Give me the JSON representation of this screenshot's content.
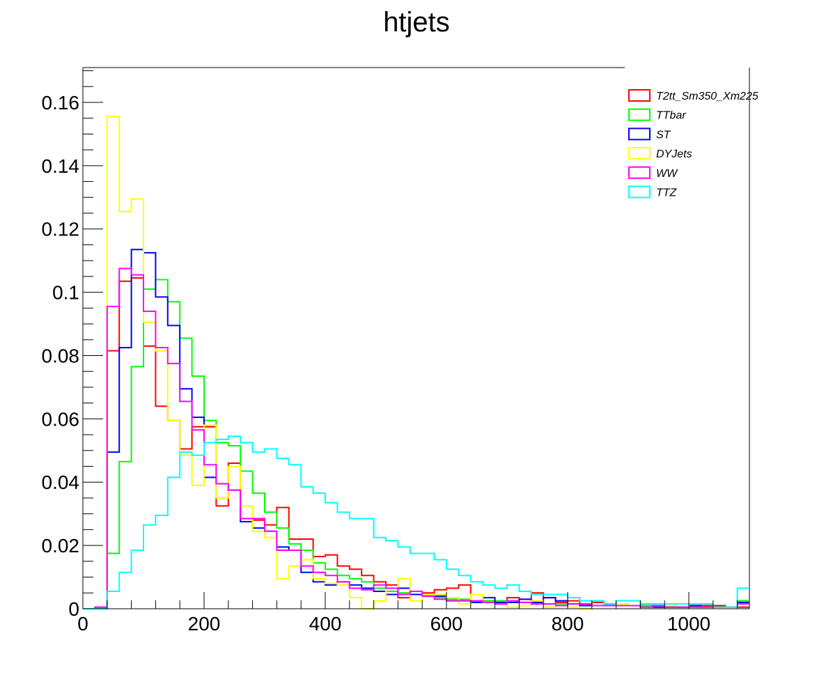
{
  "chart_data": {
    "type": "histogram",
    "title": "htjets",
    "xlabel": "",
    "ylabel": "",
    "xlim": [
      0,
      1100
    ],
    "ylim": [
      0,
      0.171
    ],
    "x_ticks": [
      "0",
      "200",
      "400",
      "600",
      "800",
      "1000"
    ],
    "y_ticks": [
      "0",
      "0.02",
      "0.04",
      "0.06",
      "0.08",
      "0.1",
      "0.12",
      "0.14",
      "0.16"
    ],
    "grid": false,
    "legend_position": "top-right",
    "bin_width": 20,
    "bin_edges_start": 0,
    "series": [
      {
        "name": "T2tt_Sm350_Xm225",
        "color": "#ff0000",
        "values": [
          0,
          0.0005,
          0.0815,
          0.1035,
          0.1045,
          0.083,
          0.064,
          0.0595,
          0.0505,
          0.0575,
          0.0575,
          0.0325,
          0.046,
          0.0285,
          0.028,
          0.0265,
          0.032,
          0.022,
          0.022,
          0.0165,
          0.017,
          0.0135,
          0.0125,
          0.0105,
          0.0085,
          0.0075,
          0.0035,
          0.0045,
          0.005,
          0.006,
          0.0065,
          0.0075,
          0.0025,
          0.0025,
          0.002,
          0.0035,
          0.003,
          0.005,
          0.0035,
          0.002,
          0.0025,
          0.0015,
          0.002,
          0.0015,
          0.001,
          0.001,
          0.0015,
          0.001,
          0.001,
          0.0005,
          0.0005,
          0.001,
          0.001,
          0.0005,
          0.0005
        ]
      },
      {
        "name": "TTbar",
        "color": "#00ff00",
        "values": [
          0,
          0,
          0.0175,
          0.0465,
          0.0765,
          0.101,
          0.104,
          0.097,
          0.0855,
          0.0735,
          0.0595,
          0.0525,
          0.0515,
          0.0435,
          0.0365,
          0.0305,
          0.0255,
          0.0205,
          0.0185,
          0.0145,
          0.0125,
          0.0105,
          0.0095,
          0.0085,
          0.0065,
          0.0055,
          0.005,
          0.0045,
          0.004,
          0.0035,
          0.003,
          0.003,
          0.0025,
          0.0025,
          0.0025,
          0.002,
          0.002,
          0.002,
          0.0015,
          0.0015,
          0.0015,
          0.001,
          0.001,
          0.001,
          0.001,
          0.001,
          0.001,
          0.001,
          0.0005,
          0.0005,
          0.0005,
          0.0005,
          0.0005,
          0.0005,
          0.0025
        ]
      },
      {
        "name": "ST",
        "color": "#0000ff",
        "values": [
          0,
          0,
          0.0495,
          0.0825,
          0.1135,
          0.1125,
          0.0985,
          0.0895,
          0.0695,
          0.0605,
          0.0415,
          0.0395,
          0.0375,
          0.0275,
          0.0255,
          0.0245,
          0.0195,
          0.0185,
          0.0115,
          0.0085,
          0.0075,
          0.0085,
          0.0075,
          0.0065,
          0.0055,
          0.0045,
          0.0065,
          0.0045,
          0.004,
          0.004,
          0.0025,
          0.0025,
          0.002,
          0.0035,
          0.002,
          0.002,
          0.003,
          0.002,
          0.0035,
          0.0025,
          0.0015,
          0.001,
          0.001,
          0.0015,
          0.001,
          0.001,
          0.0005,
          0.0005,
          0.0005,
          0.0005,
          0.001,
          0.0005,
          0.0005,
          0.0005,
          0.002
        ]
      },
      {
        "name": "DYJets",
        "color": "#ffff00",
        "values": [
          0,
          0,
          0.1555,
          0.1255,
          0.1295,
          0.0905,
          0.0815,
          0.0595,
          0.0485,
          0.039,
          0.058,
          0.035,
          0.045,
          0.0325,
          0.0245,
          0.0225,
          0.0095,
          0.0135,
          0.0155,
          0.0095,
          0.008,
          0.0075,
          0.0035,
          0,
          0.0025,
          0.0065,
          0.0095,
          0.0025,
          0.0045,
          0.0045,
          0.0035,
          0.0015,
          0.0045,
          0.002,
          0.0015,
          0.0005,
          0.001,
          0.0025,
          0.0005,
          0.001,
          0.0005,
          0,
          0.0025,
          0.001,
          0.0015,
          0.001,
          0.0005,
          0.0015,
          0.001,
          0.0015,
          0.0005,
          0.0005,
          0.0005,
          0.0005,
          0.0015
        ]
      },
      {
        "name": "WW",
        "color": "#ff00ff",
        "values": [
          0,
          0.0005,
          0.0955,
          0.1075,
          0.1055,
          0.094,
          0.0825,
          0.0775,
          0.0655,
          0.0565,
          0.0455,
          0.0395,
          0.0375,
          0.0285,
          0.0285,
          0.0245,
          0.0185,
          0.0185,
          0.0135,
          0.0115,
          0.0105,
          0.0085,
          0.0065,
          0.006,
          0.0075,
          0.0065,
          0.0045,
          0.0055,
          0.004,
          0.003,
          0.0025,
          0.0025,
          0.0025,
          0.002,
          0.0015,
          0.0025,
          0.002,
          0.0015,
          0.0015,
          0.001,
          0.0015,
          0.0015,
          0.001,
          0.001,
          0.001,
          0.001,
          0.0005,
          0.001,
          0.0005,
          0.0005,
          0.0005,
          0.0005,
          0.0005,
          0.0005,
          0.0015
        ]
      },
      {
        "name": "TTZ",
        "color": "#00ffff",
        "values": [
          0,
          0,
          0.0055,
          0.0115,
          0.0185,
          0.0265,
          0.0295,
          0.0415,
          0.0495,
          0.0485,
          0.0525,
          0.0535,
          0.0545,
          0.0525,
          0.0495,
          0.0505,
          0.0475,
          0.0455,
          0.0385,
          0.0365,
          0.0335,
          0.0305,
          0.0285,
          0.0285,
          0.0225,
          0.0215,
          0.0195,
          0.0175,
          0.0175,
          0.0155,
          0.0125,
          0.0105,
          0.0085,
          0.0075,
          0.0065,
          0.0075,
          0.0055,
          0.0045,
          0.0045,
          0.0045,
          0.0035,
          0.0025,
          0.0025,
          0.0015,
          0.0025,
          0.0025,
          0.0015,
          0.0015,
          0.0015,
          0.0015,
          0.0015,
          0.0015,
          0.0005,
          0.0005,
          0.0065
        ]
      }
    ]
  }
}
